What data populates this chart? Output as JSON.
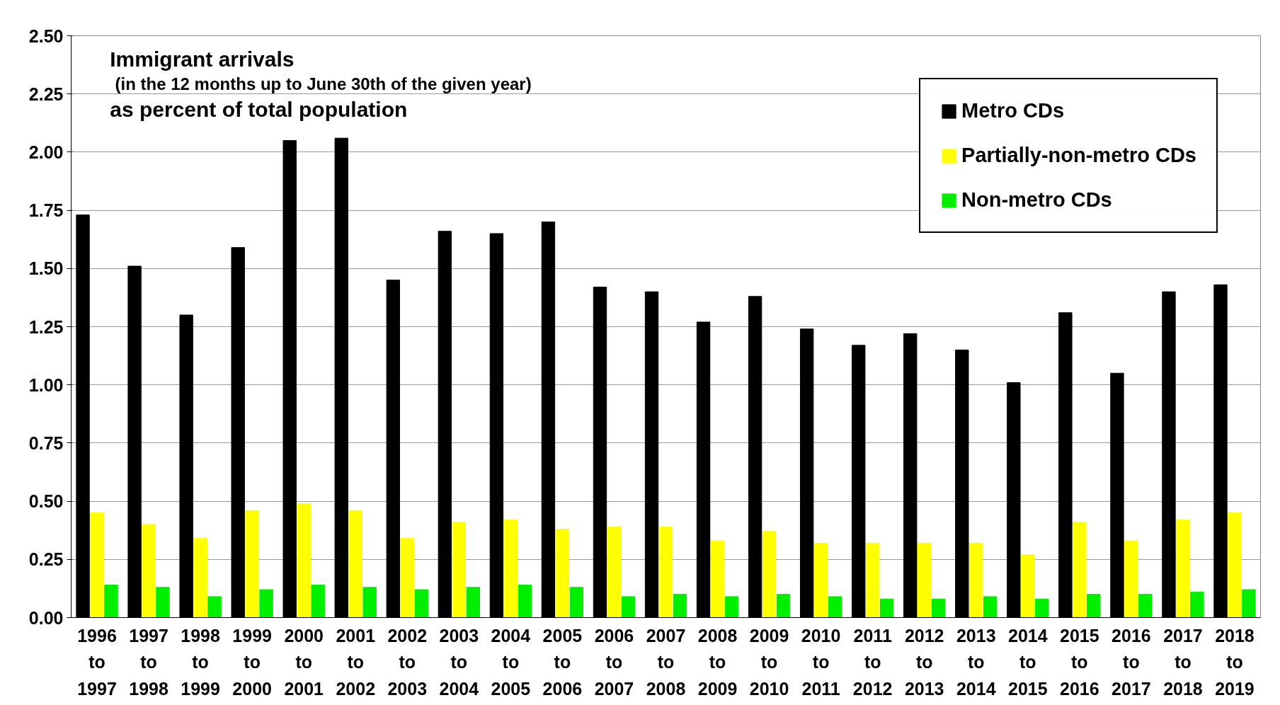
{
  "chart_data": {
    "type": "bar",
    "title": "Immigrant arrivals",
    "subtitle": "(in the 12 months up to June 30th of the given year)",
    "annotations": [
      "as percent of total population"
    ],
    "categories": [
      "1996\nto\n1997",
      "1997\nto\n1998",
      "1998\nto\n1999",
      "1999\nto\n2000",
      "2000\nto\n2001",
      "2001\nto\n2002",
      "2002\nto\n2003",
      "2003\nto\n2004",
      "2004\nto\n2005",
      "2005\nto\n2006",
      "2006\nto\n2007",
      "2007\nto\n2008",
      "2008\nto\n2009",
      "2009\nto\n2010",
      "2010\nto\n2011",
      "2011\nto\n2012",
      "2012\nto\n2013",
      "2013\nto\n2014",
      "2014\nto\n2015",
      "2015\nto\n2016",
      "2016\nto\n2017",
      "2017\nto\n2018",
      "2018\nto\n2019"
    ],
    "series": [
      {
        "name": "Metro CDs",
        "color": "#000000",
        "values": [
          1.73,
          1.51,
          1.3,
          1.59,
          2.05,
          2.06,
          1.45,
          1.66,
          1.65,
          1.7,
          1.42,
          1.4,
          1.27,
          1.38,
          1.24,
          1.17,
          1.22,
          1.15,
          1.01,
          1.31,
          1.05,
          1.4,
          1.43
        ]
      },
      {
        "name": "Partially-non-metro CDs",
        "color": "#ffff00",
        "values": [
          0.45,
          0.4,
          0.34,
          0.46,
          0.49,
          0.46,
          0.34,
          0.41,
          0.42,
          0.38,
          0.39,
          0.39,
          0.33,
          0.37,
          0.32,
          0.32,
          0.32,
          0.32,
          0.27,
          0.41,
          0.33,
          0.42,
          0.45
        ]
      },
      {
        "name": "Non-metro CDs",
        "color": "#00ee00",
        "values": [
          0.14,
          0.13,
          0.09,
          0.12,
          0.14,
          0.13,
          0.12,
          0.13,
          0.14,
          0.13,
          0.09,
          0.1,
          0.09,
          0.1,
          0.09,
          0.08,
          0.08,
          0.09,
          0.08,
          0.1,
          0.1,
          0.11,
          0.12
        ]
      }
    ],
    "ylim": [
      0,
      2.5
    ],
    "yticks": [
      {
        "value": 0,
        "label": "0.00"
      },
      {
        "value": 0.25,
        "label": "0.25"
      },
      {
        "value": 0.5,
        "label": "0.50"
      },
      {
        "value": 0.75,
        "label": "0.75"
      },
      {
        "value": 1,
        "label": "1.00"
      },
      {
        "value": 1.25,
        "label": "1.25"
      },
      {
        "value": 1.5,
        "label": "1.50"
      },
      {
        "value": 1.75,
        "label": "1.75"
      },
      {
        "value": 2,
        "label": "2.00"
      },
      {
        "value": 2.25,
        "label": "2.25"
      },
      {
        "value": 2.5,
        "label": "2.50"
      }
    ],
    "grid": "y",
    "legend": "top right"
  }
}
